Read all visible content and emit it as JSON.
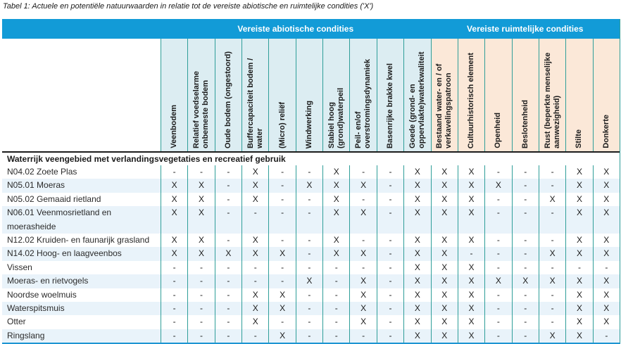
{
  "title": "Tabel 1: Actuele en potentiële natuurwaarden in relatie tot de vereiste abiotische en ruimtelijke condities ('X')",
  "colors": {
    "band_blue": "#129bd7",
    "abiotic_header_bg": "#dcedf2",
    "spatial_header_bg": "#fbe8d8",
    "grid_line": "#2f9e99",
    "stripe_blue": "#e9f3fa",
    "bottom_border": "#1e95d2"
  },
  "table": {
    "groups": [
      {
        "label": "Vereiste abiotische condities",
        "span": 10
      },
      {
        "label": "Vereiste ruimtelijke condities",
        "span": 7
      }
    ],
    "columns": [
      {
        "label": "Veenbodem",
        "group": "abiotic"
      },
      {
        "label": "Relatief voedselarme onbemeste bodem",
        "group": "abiotic"
      },
      {
        "label": "Oude bodem (ongestoord)",
        "group": "abiotic"
      },
      {
        "label": "Buffercapaciteit bodem / water",
        "group": "abiotic"
      },
      {
        "label": "(Micro) reliëf",
        "group": "abiotic"
      },
      {
        "label": "Windwerking",
        "group": "abiotic"
      },
      {
        "label": "Stabiel hoog (grond)waterpeil",
        "group": "abiotic"
      },
      {
        "label": "Peil- en/of overstromingsdynamiek",
        "group": "abiotic"
      },
      {
        "label": "Basenrijke brakke kwel",
        "group": "abiotic"
      },
      {
        "label": "Goede (grond- en oppervlakte)waterkwaliteit",
        "group": "abiotic"
      },
      {
        "label": "Bestaand water- en / of verkavelingspatroon",
        "group": "spatial"
      },
      {
        "label": "Cultuurhistorisch element",
        "group": "spatial"
      },
      {
        "label": "Openheid",
        "group": "spatial"
      },
      {
        "label": "Beslotenheid",
        "group": "spatial"
      },
      {
        "label": "Rust (beperkte menselijke aanwezigheid)",
        "group": "spatial"
      },
      {
        "label": "Stilte",
        "group": "spatial"
      },
      {
        "label": "Donkerte",
        "group": "spatial"
      }
    ],
    "section": "Waterrijk veengebied met verlandingsvegetaties en recreatief gebruik",
    "rows": [
      {
        "label": "N04.02 Zoete Plas",
        "values": [
          "-",
          "-",
          "-",
          "X",
          "-",
          "-",
          "X",
          "-",
          "-",
          "X",
          "X",
          "X",
          "-",
          "-",
          "-",
          "X",
          "X"
        ]
      },
      {
        "label": "N05.01 Moeras",
        "values": [
          "X",
          "X",
          "-",
          "X",
          "-",
          "X",
          "X",
          "X",
          "-",
          "X",
          "X",
          "X",
          "X",
          "-",
          "-",
          "X",
          "X"
        ]
      },
      {
        "label": "N05.02 Gemaaid rietland",
        "values": [
          "X",
          "X",
          "-",
          "X",
          "-",
          "-",
          "X",
          "-",
          "-",
          "X",
          "X",
          "X",
          "-",
          "-",
          "X",
          "X",
          "X"
        ]
      },
      {
        "label": "N06.01 Veenmosrietland en moerasheide",
        "values": [
          "X",
          "X",
          "-",
          "-",
          "-",
          "-",
          "X",
          "X",
          "-",
          "X",
          "X",
          "X",
          "-",
          "-",
          "-",
          "X",
          "X"
        ]
      },
      {
        "label": "N12.02 Kruiden- en faunarijk grasland",
        "values": [
          "X",
          "X",
          "-",
          "X",
          "-",
          "-",
          "X",
          "-",
          "-",
          "X",
          "X",
          "X",
          "-",
          "-",
          "-",
          "X",
          "X"
        ]
      },
      {
        "label": "N14.02 Hoog- en laagveenbos",
        "values": [
          "X",
          "X",
          "X",
          "X",
          "X",
          "-",
          "X",
          "X",
          "-",
          "X",
          "X",
          "-",
          "-",
          "-",
          "X",
          "X",
          "X"
        ]
      },
      {
        "label": "Vissen",
        "values": [
          "-",
          "-",
          "-",
          "-",
          "-",
          "-",
          "-",
          "-",
          "-",
          "X",
          "X",
          "X",
          "-",
          "-",
          "-",
          "-",
          "-"
        ]
      },
      {
        "label": "Moeras- en rietvogels",
        "values": [
          "-",
          "-",
          "-",
          "-",
          "-",
          "X",
          "-",
          "X",
          "-",
          "X",
          "X",
          "X",
          "X",
          "X",
          "X",
          "X",
          "X"
        ]
      },
      {
        "label": "Noordse woelmuis",
        "values": [
          "-",
          "-",
          "-",
          "X",
          "X",
          "-",
          "-",
          "X",
          "-",
          "X",
          "X",
          "X",
          "-",
          "-",
          "-",
          "X",
          "X"
        ]
      },
      {
        "label": "Waterspitsmuis",
        "values": [
          "-",
          "-",
          "-",
          "X",
          "X",
          "-",
          "-",
          "X",
          "-",
          "X",
          "X",
          "X",
          "-",
          "-",
          "-",
          "X",
          "X"
        ]
      },
      {
        "label": "Otter",
        "values": [
          "-",
          "-",
          "-",
          "X",
          "-",
          "-",
          "-",
          "X",
          "-",
          "X",
          "X",
          "X",
          "-",
          "-",
          "-",
          "X",
          "X"
        ]
      },
      {
        "label": "Ringslang",
        "values": [
          "-",
          "-",
          "-",
          "-",
          "X",
          "-",
          "-",
          "-",
          "-",
          "X",
          "X",
          "X",
          "-",
          "-",
          "X",
          "X",
          "-"
        ]
      }
    ]
  }
}
